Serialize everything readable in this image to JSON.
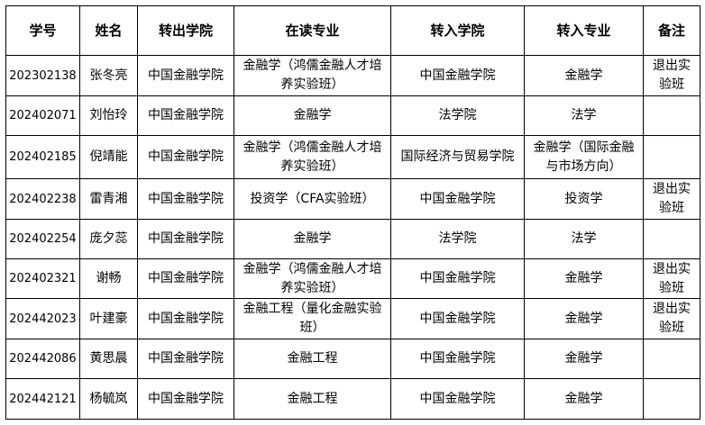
{
  "headers": [
    "学号",
    "姓名",
    "转出学院",
    "在读专业",
    "转入学院",
    "转入专业",
    "备注"
  ],
  "rows": [
    [
      "202302138",
      "张冬亮",
      "中国金融学院",
      "金融学（鸿儒金融人才培养实验班）",
      "中国金融学院",
      "金融学",
      "退出实验班"
    ],
    [
      "202402071",
      "刘怡玲",
      "中国金融学院",
      "金融学",
      "法学院",
      "法学",
      ""
    ],
    [
      "202402185",
      "倪靖能",
      "中国金融学院",
      "金融学（鸿儒金融人才培养实验班）",
      "国际经济与贸易学院",
      "金融学（国际金融与市场方向）",
      ""
    ],
    [
      "202402238",
      "雷青湘",
      "中国金融学院",
      "投资学（CFA实验班）",
      "中国金融学院",
      "投资学",
      "退出实验班"
    ],
    [
      "202402254",
      "庞夕蕊",
      "中国金融学院",
      "金融学",
      "法学院",
      "法学",
      ""
    ],
    [
      "202402321",
      "谢畅",
      "中国金融学院",
      "金融学（鸿儒金融人才培养实验班）",
      "中国金融学院",
      "金融学",
      "退出实验班"
    ],
    [
      "202442023",
      "叶建豪",
      "中国金融学院",
      "金融工程（量化金融实验班）",
      "中国金融学院",
      "金融学",
      "退出实验班"
    ],
    [
      "202442086",
      "黄思晨",
      "中国金融学院",
      "金融工程",
      "中国金融学院",
      "金融学",
      ""
    ],
    [
      "202442121",
      "杨毓岚",
      "中国金融学院",
      "金融工程",
      "中国金融学院",
      "金融学",
      ""
    ]
  ]
}
